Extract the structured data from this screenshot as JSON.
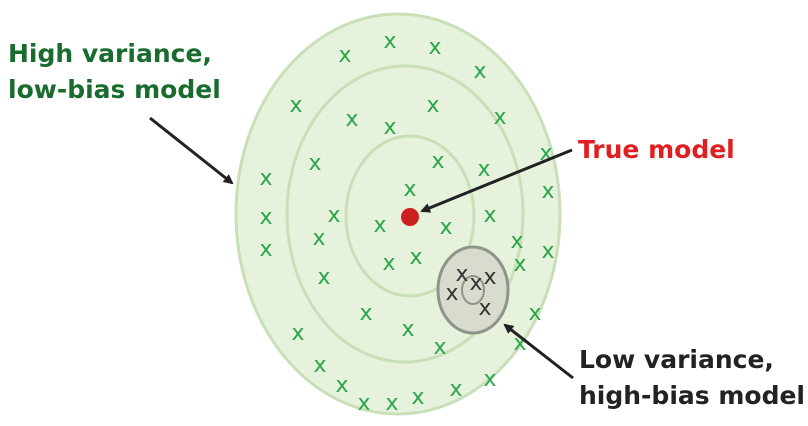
{
  "labels": {
    "high_variance_line1": "High variance,",
    "high_variance_line2": "low-bias model",
    "true_model": "True model",
    "low_variance_line1": "Low variance,",
    "low_variance_line2": "high-bias model"
  },
  "marks": {
    "symbol": "x"
  },
  "colors": {
    "target_fill": "#e6f2dc",
    "target_ring": "#c9dfb7",
    "green_mark": "#2aa64a",
    "dark_mark": "#333333",
    "true_dot": "#cc1f1f",
    "high_variance_text": "#1a6b2e",
    "true_model_text": "#e02020",
    "low_variance_text": "#222222",
    "cluster_fill": "#d8dccf",
    "cluster_ring": "#8f948a"
  },
  "icons": [
    "arrow-icon",
    "arrow-icon",
    "arrow-icon"
  ]
}
